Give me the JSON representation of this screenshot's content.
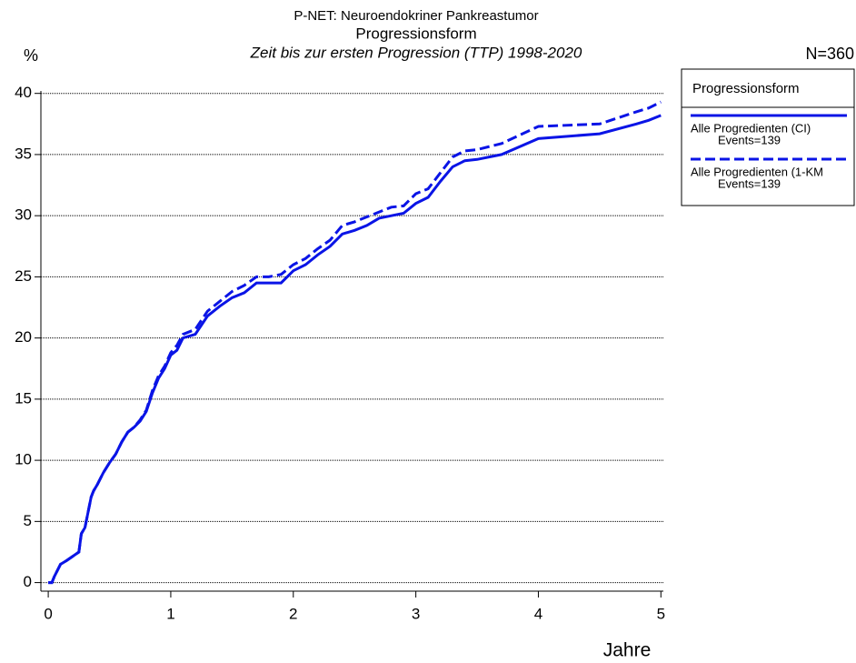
{
  "chart_data": {
    "type": "line",
    "title": "P-NET: Neuroendokriner Pankreastumor",
    "subtitle": "Progressionsform",
    "subtitle2": "Zeit bis zur ersten Progression (TTP) 1998-2020",
    "ylabel": "%",
    "xlabel": "Jahre",
    "annotation": "N=360",
    "legend_title": "Progressionsform",
    "legend": "upper right outside",
    "grid": true,
    "xlim": [
      -0.06,
      5.02
    ],
    "xticks": [
      0,
      1,
      2,
      3,
      4,
      5
    ],
    "ylim": [
      -0.7,
      40.2
    ],
    "yticks": [
      0,
      5,
      10,
      15,
      20,
      25,
      30,
      35,
      40
    ],
    "x": [
      0,
      0.03,
      0.05,
      0.1,
      0.15,
      0.25,
      0.27,
      0.3,
      0.35,
      0.37,
      0.4,
      0.45,
      0.5,
      0.55,
      0.6,
      0.65,
      0.7,
      0.75,
      0.8,
      0.85,
      0.9,
      0.95,
      1.0,
      1.05,
      1.1,
      1.2,
      1.3,
      1.4,
      1.5,
      1.6,
      1.7,
      1.8,
      1.9,
      2.0,
      2.1,
      2.2,
      2.3,
      2.4,
      2.5,
      2.6,
      2.7,
      2.8,
      2.9,
      3.0,
      3.1,
      3.2,
      3.3,
      3.4,
      3.5,
      3.7,
      4.0,
      4.5,
      4.8,
      4.9,
      5.0
    ],
    "series": [
      {
        "name": "Alle Progredienten (CI)",
        "events": "Events=139",
        "color": "#0a14e6",
        "dash": false,
        "values": [
          0,
          0,
          0.5,
          1.5,
          1.8,
          2.5,
          4,
          4.5,
          7,
          7.5,
          8,
          9,
          9.8,
          10.5,
          11.5,
          12.3,
          12.7,
          13.2,
          14,
          15.5,
          16.7,
          17.5,
          18.6,
          19,
          20,
          20.3,
          21.8,
          22.6,
          23.3,
          23.7,
          24.5,
          24.5,
          24.5,
          25.5,
          26,
          26.8,
          27.5,
          28.5,
          28.8,
          29.2,
          29.8,
          30,
          30.2,
          31,
          31.5,
          32.8,
          34,
          34.5,
          34.6,
          35,
          36.3,
          36.7,
          37.5,
          37.8,
          38.2
        ]
      },
      {
        "name": "Alle Progredienten (1-KM",
        "events": "Events=139",
        "color": "#0a14e6",
        "dash": true,
        "values": [
          0,
          0,
          0.5,
          1.5,
          1.8,
          2.5,
          4,
          4.5,
          7,
          7.5,
          8,
          9,
          9.8,
          10.5,
          11.5,
          12.3,
          12.7,
          13.3,
          14.1,
          15.7,
          16.9,
          17.7,
          18.8,
          19.4,
          20.3,
          20.7,
          22.2,
          23,
          23.8,
          24.3,
          25,
          25,
          25.2,
          26,
          26.5,
          27.3,
          28,
          29.2,
          29.5,
          29.9,
          30.3,
          30.7,
          30.8,
          31.8,
          32.2,
          33.5,
          34.8,
          35.3,
          35.4,
          35.9,
          37.3,
          37.5,
          38.5,
          38.8,
          39.3
        ]
      }
    ]
  }
}
